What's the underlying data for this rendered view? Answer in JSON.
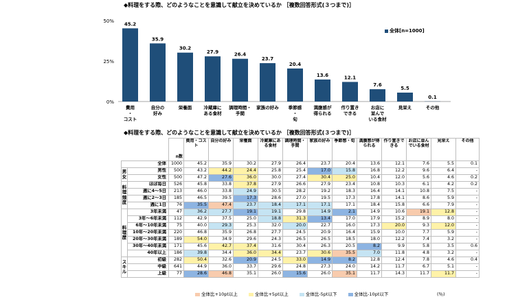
{
  "chart_title": "◆料理をする際、どのようなことを意識して献立を決めているか ［複数回答形式(３つまで)］",
  "table_title": "◆料理をする際、どのようなことを意識して献立を決めているか ［複数回答形式(３つまで)］",
  "legend": "全体[n=1000]",
  "colors": {
    "bar": "#1f4e79",
    "high10": "#f8cbad",
    "high5": "#fff2a8",
    "low5": "#c5e4f3",
    "low10": "#8db4e2"
  },
  "chart_data": {
    "type": "bar",
    "categories": [
      "費用・コスト",
      "自分の好み",
      "栄養面",
      "冷蔵庫にある食材",
      "調理時間・手間",
      "家族の好み",
      "季節感・旬",
      "満腹感が得られる",
      "作り置きできる",
      "お店に並んでいる食材",
      "見栄え",
      "その他"
    ],
    "category_lines": [
      [
        "費用",
        "・",
        "コスト"
      ],
      [
        "自分の",
        "好み"
      ],
      [
        "栄養面"
      ],
      [
        "冷蔵庫に",
        "ある食材"
      ],
      [
        "調理時間・",
        "手間"
      ],
      [
        "家族の好み"
      ],
      [
        "季節感",
        "・",
        "旬"
      ],
      [
        "満腹感が",
        "得られる"
      ],
      [
        "作り置き",
        "できる"
      ],
      [
        "お店に",
        "並んで",
        "いる食材"
      ],
      [
        "見栄え"
      ],
      [
        "その他"
      ]
    ],
    "series": [
      {
        "name": "全体[n=1000]",
        "values": [
          45.2,
          35.9,
          30.2,
          27.9,
          26.4,
          23.7,
          20.4,
          13.6,
          12.1,
          7.6,
          5.5,
          0.1
        ]
      }
    ],
    "ylim": [
      0,
      50
    ],
    "yticks": [
      "50%",
      "25%",
      "0%"
    ],
    "grid": false,
    "legend_position": "top-right"
  },
  "table": {
    "headers": [
      "n数",
      "費用・コスト",
      "自分の好み",
      "栄養面",
      "冷蔵庫にある食材",
      "調理時間・手間",
      "家族の好み",
      "季節感・旬",
      "満腹感が得られる",
      "作り置きできる",
      "お店に並んでいる食材",
      "見栄え",
      "その他"
    ],
    "groups": [
      {
        "label": "",
        "rows": [
          {
            "label": "全体",
            "n": "1000",
            "v": [
              "45.2",
              "35.9",
              "30.2",
              "27.9",
              "26.4",
              "23.7",
              "20.4",
              "13.6",
              "12.1",
              "7.6",
              "5.5",
              "0.1"
            ],
            "h": [
              "",
              "",
              "",
              "",
              "",
              "",
              "",
              "",
              "",
              "",
              "",
              ""
            ]
          }
        ]
      },
      {
        "label": "男女",
        "rows": [
          {
            "label": "男性",
            "n": "500",
            "v": [
              "43.2",
              "44.2",
              "24.4",
              "25.8",
              "25.4",
              "17.0",
              "15.8",
              "16.8",
              "12.2",
              "9.6",
              "6.4",
              "-"
            ],
            "h": [
              "",
              "h2",
              "h2",
              "",
              "",
              "l2",
              "l1",
              "",
              "",
              "",
              "",
              ""
            ]
          },
          {
            "label": "女性",
            "n": "500",
            "v": [
              "47.2",
              "27.6",
              "36.0",
              "30.0",
              "27.4",
              "30.4",
              "25.0",
              "10.4",
              "12.0",
              "5.6",
              "4.6",
              "0.2"
            ],
            "h": [
              "",
              "l2",
              "h2",
              "",
              "",
              "h2",
              "h2",
              "",
              "",
              "",
              "",
              ""
            ]
          }
        ]
      },
      {
        "label": "料理頻度",
        "rows": [
          {
            "label": "ほぼ毎日",
            "n": "526",
            "v": [
              "45.8",
              "33.8",
              "37.8",
              "27.9",
              "26.6",
              "27.9",
              "23.4",
              "10.8",
              "10.3",
              "6.1",
              "4.2",
              "0.2"
            ],
            "h": [
              "",
              "",
              "h2",
              "",
              "",
              "",
              "",
              "",
              "",
              "",
              "",
              ""
            ]
          },
          {
            "label": "週に4～5日",
            "n": "213",
            "v": [
              "46.0",
              "33.8",
              "24.9",
              "30.5",
              "28.2",
              "19.2",
              "18.3",
              "16.4",
              "14.1",
              "10.8",
              "7.5",
              "-"
            ],
            "h": [
              "",
              "",
              "l1",
              "",
              "",
              "",
              "",
              "",
              "",
              "",
              "",
              ""
            ]
          },
          {
            "label": "週に2～3日",
            "n": "185",
            "v": [
              "46.5",
              "39.5",
              "17.3",
              "28.6",
              "27.0",
              "19.5",
              "17.3",
              "17.8",
              "14.1",
              "8.6",
              "5.9",
              "-"
            ],
            "h": [
              "",
              "",
              "l2",
              "",
              "",
              "",
              "",
              "",
              "",
              "",
              "",
              ""
            ]
          },
          {
            "label": "週に1日",
            "n": "76",
            "v": [
              "35.5",
              "47.4",
              "23.7",
              "18.4",
              "17.1",
              "17.1",
              "17.1",
              "18.4",
              "15.8",
              "6.6",
              "7.9",
              "-"
            ],
            "h": [
              "l2",
              "h10",
              "l1",
              "l1",
              "l1",
              "l1",
              "",
              "",
              "",
              "",
              "",
              ""
            ]
          }
        ]
      },
      {
        "label": "料理歴",
        "rows": [
          {
            "label": "3年未満",
            "n": "47",
            "v": [
              "36.2",
              "27.7",
              "19.1",
              "19.1",
              "29.8",
              "14.9",
              "2.1",
              "14.9",
              "10.6",
              "19.1",
              "12.8",
              "-"
            ],
            "h": [
              "l1",
              "l1",
              "l2",
              "l1",
              "",
              "l1",
              "l2",
              "",
              "",
              "h10",
              "h2",
              ""
            ]
          },
          {
            "label": "3年～6年未満",
            "n": "112",
            "v": [
              "42.9",
              "37.5",
              "25.0",
              "18.8",
              "31.3",
              "13.4",
              "17.0",
              "17.9",
              "15.2",
              "8.9",
              "8.0",
              "-"
            ],
            "h": [
              "",
              "",
              "",
              "l1",
              "h2",
              "l2",
              "",
              "",
              "",
              "",
              "",
              ""
            ]
          },
          {
            "label": "6年～10年未満",
            "n": "75",
            "v": [
              "40.0",
              "29.3",
              "25.3",
              "32.0",
              "20.0",
              "22.7",
              "16.0",
              "17.3",
              "20.0",
              "9.3",
              "12.0",
              "-"
            ],
            "h": [
              "",
              "l1",
              "",
              "",
              "l1",
              "",
              "",
              "",
              "h2",
              "",
              "h2",
              ""
            ]
          },
          {
            "label": "10年～20年未満",
            "n": "220",
            "v": [
              "46.8",
              "35.9",
              "26.8",
              "27.7",
              "24.5",
              "20.9",
              "16.4",
              "15.9",
              "10.0",
              "7.7",
              "5.9",
              "-"
            ],
            "h": [
              "",
              "",
              "",
              "",
              "",
              "",
              "",
              "",
              "",
              "",
              "",
              ""
            ]
          },
          {
            "label": "20年～30年未満",
            "n": "189",
            "v": [
              "54.0",
              "34.9",
              "29.6",
              "24.3",
              "26.5",
              "26.5",
              "18.5",
              "18.0",
              "12.2",
              "7.4",
              "3.2",
              "-"
            ],
            "h": [
              "h2",
              "",
              "",
              "",
              "",
              "",
              "",
              "",
              "",
              "",
              "",
              ""
            ]
          },
          {
            "label": "30年～40年未満",
            "n": "171",
            "v": [
              "45.6",
              "42.7",
              "37.4",
              "31.6",
              "30.4",
              "26.3",
              "20.5",
              "8.2",
              "9.9",
              "5.8",
              "3.5",
              "0.6"
            ],
            "h": [
              "",
              "h2",
              "h2",
              "",
              "",
              "",
              "",
              "l2",
              "",
              "",
              "",
              ""
            ]
          },
          {
            "label": "40年以上",
            "n": "186",
            "v": [
              "39.8",
              "34.4",
              "36.0",
              "34.4",
              "23.7",
              "30.6",
              "35.5",
              "7.0",
              "11.8",
              "4.8",
              "3.2",
              "-"
            ],
            "h": [
              "l1",
              "",
              "h2",
              "h2",
              "",
              "h2",
              "h10",
              "l1",
              "",
              "",
              "",
              ""
            ]
          }
        ]
      },
      {
        "label": "スキル",
        "rows": [
          {
            "label": "初級",
            "n": "282",
            "v": [
              "50.4",
              "32.6",
              "20.9",
              "24.5",
              "33.0",
              "14.9",
              "8.2",
              "12.8",
              "12.4",
              "7.8",
              "4.6",
              "0.4"
            ],
            "h": [
              "h2",
              "",
              "l2",
              "",
              "h2",
              "l2",
              "l2",
              "",
              "",
              "",
              "",
              ""
            ]
          },
          {
            "label": "中級",
            "n": "641",
            "v": [
              "44.9",
              "36.0",
              "33.7",
              "29.6",
              "24.8",
              "27.3",
              "24.0",
              "14.2",
              "11.7",
              "6.7",
              "5.1",
              "-"
            ],
            "h": [
              "",
              "",
              "",
              "",
              "",
              "",
              "",
              "",
              "",
              "",
              "",
              ""
            ]
          },
          {
            "label": "上級",
            "n": "77",
            "v": [
              "28.6",
              "46.8",
              "35.1",
              "26.0",
              "15.6",
              "26.0",
              "35.1",
              "11.7",
              "14.3",
              "11.7",
              "11.7",
              "-"
            ],
            "h": [
              "l2",
              "h10",
              "",
              "",
              "l2",
              "",
              "h10",
              "",
              "",
              "",
              "h2",
              ""
            ]
          }
        ]
      }
    ]
  },
  "table_legend": [
    "全体比+10pt以上",
    "全体比+5pt以上",
    "全体比-5pt以下",
    "全体比-10pt以下"
  ],
  "unit_note": "(％)"
}
